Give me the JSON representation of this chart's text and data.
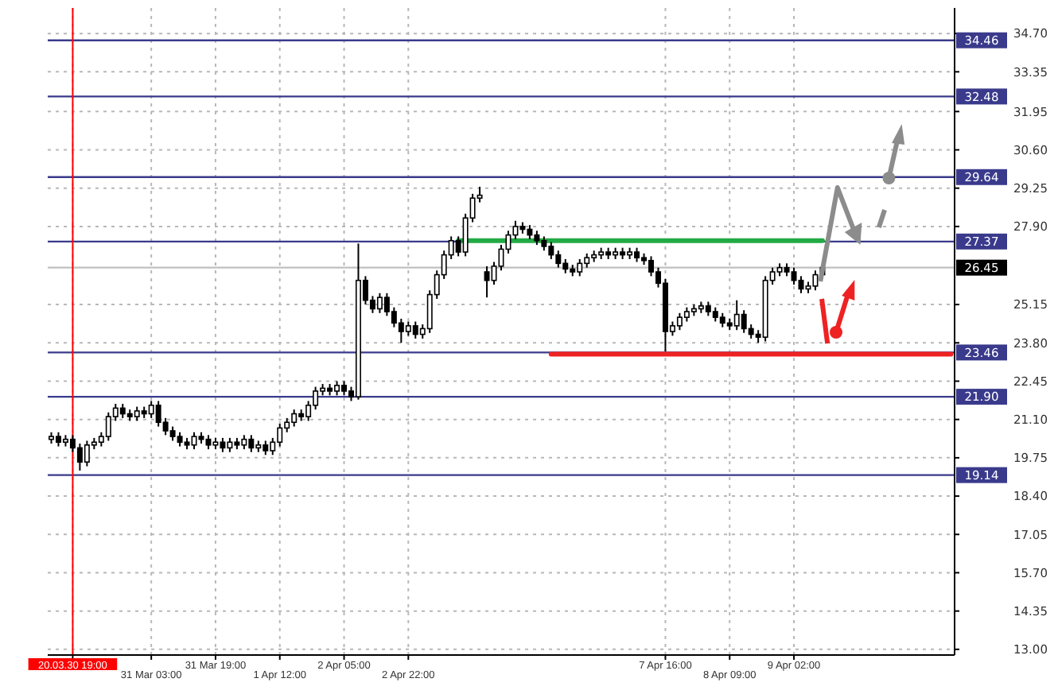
{
  "chart_data": {
    "type": "candlestick",
    "color": "#000000",
    "categories": [
      null,
      null,
      null,
      "20.03.30 19:00",
      null,
      null,
      null,
      null,
      null,
      null,
      null,
      null,
      null,
      null,
      "31 Mar 03:00",
      null,
      null,
      null,
      null,
      null,
      null,
      null,
      null,
      "31 Mar 19:00",
      null,
      null,
      null,
      null,
      null,
      null,
      null,
      null,
      "1 Apr 12:00",
      null,
      null,
      null,
      null,
      null,
      null,
      null,
      null,
      "2 Apr 05:00",
      null,
      null,
      null,
      null,
      null,
      null,
      null,
      null,
      "2 Apr 22:00",
      null,
      null,
      null,
      null,
      null,
      null,
      null,
      null,
      null,
      null,
      null,
      null,
      null,
      null,
      null,
      null,
      null,
      null,
      null,
      null,
      null,
      null,
      null,
      null,
      null,
      null,
      null,
      null,
      null,
      null,
      null,
      null,
      null,
      null,
      null,
      "7 Apr 16:00",
      null,
      null,
      null,
      null,
      null,
      null,
      null,
      null,
      "8 Apr 09:00",
      null,
      null,
      null,
      null,
      null,
      null,
      null,
      null,
      "9 Apr 02:00",
      null,
      null,
      null,
      null,
      null,
      null,
      null,
      null,
      null,
      null,
      null,
      null,
      null,
      null,
      null,
      null,
      null,
      null,
      null,
      null,
      null,
      null
    ],
    "ohlc": [
      [
        20.4,
        20.65,
        20.25,
        20.5
      ],
      [
        20.5,
        20.65,
        20.15,
        20.3
      ],
      [
        20.3,
        20.55,
        20.15,
        20.4
      ],
      [
        20.4,
        20.55,
        19.95,
        20.1
      ],
      [
        20.1,
        20.25,
        19.3,
        19.6
      ],
      [
        19.6,
        20.35,
        19.45,
        20.2
      ],
      [
        20.2,
        20.45,
        20.05,
        20.3
      ],
      [
        20.3,
        20.65,
        20.15,
        20.5
      ],
      [
        20.5,
        21.35,
        20.35,
        21.2
      ],
      [
        21.2,
        21.65,
        21.05,
        21.5
      ],
      [
        21.5,
        21.65,
        21.15,
        21.3
      ],
      [
        21.3,
        21.45,
        21.05,
        21.2
      ],
      [
        21.2,
        21.55,
        21.05,
        21.4
      ],
      [
        21.4,
        21.55,
        21.15,
        21.3
      ],
      [
        21.3,
        21.75,
        21.15,
        21.6
      ],
      [
        21.6,
        21.75,
        20.85,
        21.0
      ],
      [
        21.0,
        21.15,
        20.55,
        20.7
      ],
      [
        20.7,
        20.85,
        20.35,
        20.5
      ],
      [
        20.5,
        20.65,
        20.15,
        20.3
      ],
      [
        20.3,
        20.45,
        20.05,
        20.2
      ],
      [
        20.2,
        20.65,
        20.05,
        20.5
      ],
      [
        20.5,
        20.65,
        20.25,
        20.4
      ],
      [
        20.4,
        20.55,
        20.05,
        20.2
      ],
      [
        20.2,
        20.45,
        20.05,
        20.3
      ],
      [
        20.3,
        20.45,
        19.95,
        20.1
      ],
      [
        20.1,
        20.45,
        19.95,
        20.3
      ],
      [
        20.3,
        20.45,
        20.05,
        20.2
      ],
      [
        20.2,
        20.55,
        20.05,
        20.4
      ],
      [
        20.4,
        20.55,
        19.95,
        20.1
      ],
      [
        20.1,
        20.35,
        19.95,
        20.2
      ],
      [
        20.2,
        20.35,
        19.85,
        20.0
      ],
      [
        20.0,
        20.45,
        19.85,
        20.3
      ],
      [
        20.3,
        20.95,
        20.15,
        20.8
      ],
      [
        20.8,
        21.15,
        20.65,
        21.0
      ],
      [
        21.0,
        21.45,
        20.85,
        21.3
      ],
      [
        21.3,
        21.45,
        21.05,
        21.2
      ],
      [
        21.2,
        21.75,
        21.05,
        21.6
      ],
      [
        21.6,
        22.25,
        21.45,
        22.1
      ],
      [
        22.1,
        22.35,
        21.95,
        22.2
      ],
      [
        22.2,
        22.35,
        21.95,
        22.1
      ],
      [
        22.1,
        22.45,
        21.95,
        22.3
      ],
      [
        22.3,
        22.45,
        21.95,
        22.1
      ],
      [
        22.1,
        22.25,
        21.75,
        21.9
      ],
      [
        21.9,
        27.3,
        21.8,
        26.0
      ],
      [
        26.0,
        26.15,
        25.15,
        25.3
      ],
      [
        25.3,
        25.45,
        24.85,
        25.0
      ],
      [
        25.0,
        25.55,
        24.85,
        25.4
      ],
      [
        25.4,
        25.55,
        24.75,
        24.9
      ],
      [
        24.9,
        25.05,
        24.35,
        24.5
      ],
      [
        24.5,
        24.65,
        23.8,
        24.2
      ],
      [
        24.2,
        24.55,
        24.05,
        24.4
      ],
      [
        24.4,
        24.55,
        23.95,
        24.1
      ],
      [
        24.1,
        24.45,
        23.95,
        24.3
      ],
      [
        24.3,
        25.65,
        24.15,
        25.5
      ],
      [
        25.5,
        26.35,
        25.35,
        26.2
      ],
      [
        26.2,
        27.05,
        26.05,
        26.9
      ],
      [
        26.9,
        27.55,
        26.75,
        27.4
      ],
      [
        27.4,
        27.55,
        26.85,
        27.0
      ],
      [
        27.0,
        28.35,
        26.85,
        28.2
      ],
      [
        28.2,
        29.05,
        28.05,
        28.9
      ],
      [
        28.9,
        29.3,
        28.75,
        29.0
      ],
      [
        26.3,
        26.5,
        25.4,
        26.0
      ],
      [
        26.0,
        26.65,
        25.85,
        26.5
      ],
      [
        26.5,
        27.25,
        26.35,
        27.1
      ],
      [
        27.1,
        27.75,
        26.95,
        27.6
      ],
      [
        27.6,
        28.1,
        27.45,
        27.9
      ],
      [
        27.9,
        28.05,
        27.65,
        27.8
      ],
      [
        27.8,
        27.95,
        27.45,
        27.6
      ],
      [
        27.6,
        27.75,
        27.25,
        27.4
      ],
      [
        27.4,
        27.55,
        27.05,
        27.2
      ],
      [
        27.2,
        27.35,
        26.75,
        26.9
      ],
      [
        26.9,
        27.05,
        26.45,
        26.6
      ],
      [
        26.6,
        26.75,
        26.25,
        26.4
      ],
      [
        26.4,
        26.55,
        26.15,
        26.3
      ],
      [
        26.3,
        26.75,
        26.15,
        26.6
      ],
      [
        26.6,
        26.95,
        26.45,
        26.8
      ],
      [
        26.8,
        27.05,
        26.65,
        26.9
      ],
      [
        26.9,
        27.15,
        26.75,
        27.0
      ],
      [
        27.0,
        27.15,
        26.75,
        26.9
      ],
      [
        26.9,
        27.15,
        26.75,
        27.0
      ],
      [
        27.0,
        27.15,
        26.75,
        26.9
      ],
      [
        26.9,
        27.15,
        26.75,
        27.0
      ],
      [
        27.0,
        27.15,
        26.65,
        26.8
      ],
      [
        26.8,
        26.95,
        26.55,
        26.7
      ],
      [
        26.7,
        26.85,
        26.15,
        26.3
      ],
      [
        26.3,
        26.45,
        25.75,
        25.9
      ],
      [
        25.9,
        26.05,
        23.5,
        24.2
      ],
      [
        24.2,
        24.55,
        24.05,
        24.4
      ],
      [
        24.4,
        24.85,
        24.25,
        24.7
      ],
      [
        24.7,
        25.05,
        24.55,
        24.9
      ],
      [
        24.9,
        25.15,
        24.75,
        25.0
      ],
      [
        25.0,
        25.25,
        24.85,
        25.1
      ],
      [
        25.1,
        25.25,
        24.75,
        24.9
      ],
      [
        24.9,
        25.05,
        24.55,
        24.7
      ],
      [
        24.7,
        24.85,
        24.35,
        24.5
      ],
      [
        24.5,
        24.65,
        24.25,
        24.4
      ],
      [
        24.4,
        25.3,
        24.25,
        24.8
      ],
      [
        24.8,
        24.95,
        24.15,
        24.3
      ],
      [
        24.3,
        24.45,
        23.95,
        24.1
      ],
      [
        24.1,
        24.25,
        23.8,
        24.0
      ],
      [
        24.0,
        26.15,
        23.85,
        26.0
      ],
      [
        26.0,
        26.45,
        25.85,
        26.3
      ],
      [
        26.3,
        26.6,
        26.15,
        26.45
      ],
      [
        26.45,
        26.6,
        26.15,
        26.3
      ],
      [
        26.3,
        26.45,
        25.85,
        26.0
      ],
      [
        26.0,
        26.15,
        25.55,
        25.7
      ],
      [
        25.7,
        25.95,
        25.55,
        25.8
      ],
      [
        25.8,
        26.35,
        25.65,
        26.2
      ],
      [
        26.2,
        26.6,
        26.05,
        26.45
      ],
      null,
      null,
      null,
      null,
      null,
      null,
      null,
      null,
      null,
      null,
      null,
      null,
      null,
      null,
      null,
      null,
      null,
      null
    ],
    "series": [
      {
        "type": "line",
        "color": "#22aa44",
        "values": [
          null,
          null,
          null,
          null,
          null,
          null,
          null,
          null,
          null,
          null,
          null,
          null,
          null,
          null,
          null,
          null,
          null,
          null,
          null,
          null,
          null,
          null,
          null,
          null,
          null,
          null,
          null,
          null,
          null,
          null,
          null,
          null,
          null,
          null,
          null,
          null,
          null,
          null,
          null,
          null,
          null,
          null,
          null,
          null,
          null,
          null,
          null,
          null,
          null,
          null,
          null,
          null,
          null,
          null,
          null,
          null,
          null,
          27.4,
          27.4,
          27.4,
          27.4,
          27.4,
          27.4,
          27.4,
          27.4,
          27.4,
          27.4,
          27.4,
          27.4,
          27.4,
          27.4,
          27.4,
          27.4,
          27.4,
          27.4,
          27.4,
          27.4,
          27.4,
          27.4,
          27.4,
          27.4,
          27.4,
          27.4,
          27.4,
          27.4,
          27.4,
          27.4,
          27.4,
          27.4,
          27.4,
          27.4,
          27.4,
          27.4,
          27.4,
          27.4,
          27.4,
          27.4,
          27.4,
          27.4,
          27.4,
          27.4,
          27.4,
          27.4,
          27.4,
          27.4,
          27.4,
          27.4,
          27.4,
          27.4,
          null,
          null,
          null,
          null,
          null,
          null,
          null,
          null,
          null,
          null,
          null,
          null,
          null,
          null,
          null,
          null,
          null,
          null
        ]
      },
      {
        "type": "line",
        "color": "#ee2222",
        "values": [
          null,
          null,
          null,
          null,
          null,
          null,
          null,
          null,
          null,
          null,
          null,
          null,
          null,
          null,
          null,
          null,
          null,
          null,
          null,
          null,
          null,
          null,
          null,
          null,
          null,
          null,
          null,
          null,
          null,
          null,
          null,
          null,
          null,
          null,
          null,
          null,
          null,
          null,
          null,
          null,
          null,
          null,
          null,
          null,
          null,
          null,
          null,
          null,
          null,
          null,
          null,
          null,
          null,
          null,
          null,
          null,
          null,
          null,
          null,
          null,
          null,
          null,
          null,
          null,
          null,
          null,
          null,
          null,
          null,
          null,
          23.4,
          23.4,
          23.4,
          23.4,
          23.4,
          23.4,
          23.4,
          23.4,
          23.4,
          23.4,
          23.4,
          23.4,
          23.4,
          23.4,
          23.4,
          23.4,
          23.4,
          23.4,
          23.4,
          23.4,
          23.4,
          23.4,
          23.4,
          23.4,
          23.4,
          23.4,
          23.4,
          23.4,
          23.4,
          23.4,
          23.4,
          23.4,
          23.4,
          23.4,
          23.4,
          23.4,
          23.4,
          23.4,
          23.4,
          23.4,
          23.4,
          23.4,
          23.4,
          23.4,
          23.4,
          23.4,
          23.4,
          23.4,
          23.4,
          23.4,
          23.4,
          23.4,
          23.4,
          23.4,
          23.4,
          23.4,
          23.4
        ]
      }
    ],
    "ylim": [
      12.8,
      35.6
    ],
    "yticks": [
      {
        "value": 13,
        "label": "13.00"
      },
      14.35,
      {
        "value": 15.7,
        "label": "15.70"
      },
      17.05,
      {
        "value": 18.4,
        "label": "18.40"
      },
      19.75,
      {
        "value": 21.1,
        "label": "21.10"
      },
      22.45,
      {
        "value": 23.8,
        "label": "23.80"
      },
      25.15,
      {
        "value": 27.9,
        "label": "27.90"
      },
      29.25,
      {
        "value": 30.6,
        "label": "30.60"
      },
      31.95,
      33.35,
      {
        "value": 34.7,
        "label": "34.70"
      }
    ],
    "grid": true,
    "ref_lines": [
      {
        "axis": "y",
        "value": 34.46,
        "label": "34.46",
        "color": "#3a3a8c"
      },
      {
        "axis": "y",
        "value": 32.48,
        "label": "32.48",
        "color": "#3a3a8c"
      },
      {
        "axis": "y",
        "value": 29.64,
        "label": "29.64",
        "color": "#3a3a8c"
      },
      {
        "axis": "y",
        "value": 27.37,
        "label": "27.37",
        "color": "#3a3a8c"
      },
      {
        "axis": "y",
        "value": 26.45,
        "label": "26.45",
        "color": "#c0c0c0"
      },
      {
        "axis": "y",
        "value": 23.46,
        "label": "23.46",
        "color": "#3a3a8c"
      },
      {
        "axis": "y",
        "value": 21.9,
        "label": "21.90",
        "color": "#3a3a8c"
      },
      {
        "axis": "y",
        "value": 19.14,
        "label": "19.14",
        "color": "#3a3a8c"
      },
      {
        "axis": "x",
        "value": "20.03.30 19:00",
        "color": "#ff0000"
      }
    ]
  }
}
